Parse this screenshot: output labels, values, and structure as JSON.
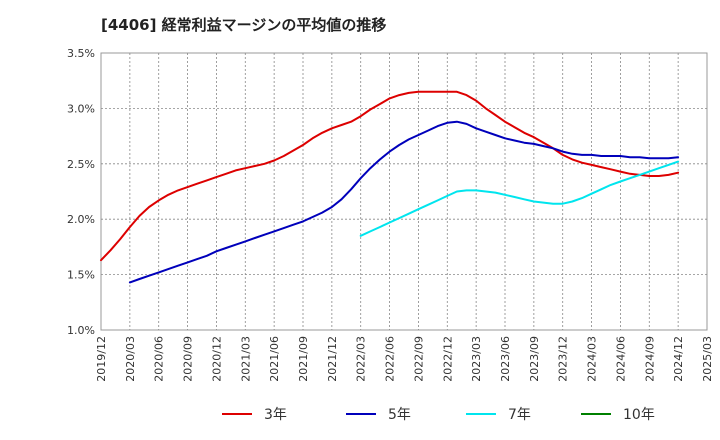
{
  "chart_data": {
    "type": "line",
    "title": "[4406]  経常利益マージンの平均値の推移",
    "y_ticks": [
      "1.0%",
      "1.5%",
      "2.0%",
      "2.5%",
      "3.0%",
      "3.5%"
    ],
    "ylim": [
      1.0,
      3.5
    ],
    "x_ticks": [
      "2019/12",
      "2020/03",
      "2020/06",
      "2020/09",
      "2020/12",
      "2021/03",
      "2021/06",
      "2021/09",
      "2021/12",
      "2022/03",
      "2022/06",
      "2022/09",
      "2022/12",
      "2023/03",
      "2023/06",
      "2023/09",
      "2023/12",
      "2024/03",
      "2024/06",
      "2024/09",
      "2024/12",
      "2025/03"
    ],
    "grid": true,
    "legend_position": "bottom",
    "series": [
      {
        "name": "3年",
        "color": "#dd0000",
        "x": [
          "2019/12",
          "2020/01",
          "2020/02",
          "2020/03",
          "2020/04",
          "2020/05",
          "2020/06",
          "2020/07",
          "2020/08",
          "2020/09",
          "2020/10",
          "2020/11",
          "2020/12",
          "2021/01",
          "2021/02",
          "2021/03",
          "2021/04",
          "2021/05",
          "2021/06",
          "2021/07",
          "2021/08",
          "2021/09",
          "2021/10",
          "2021/11",
          "2021/12",
          "2022/01",
          "2022/02",
          "2022/03",
          "2022/04",
          "2022/05",
          "2022/06",
          "2022/07",
          "2022/08",
          "2022/09",
          "2022/10",
          "2022/11",
          "2022/12",
          "2023/01",
          "2023/02",
          "2023/03",
          "2023/04",
          "2023/05",
          "2023/06",
          "2023/07",
          "2023/08",
          "2023/09",
          "2023/10",
          "2023/11",
          "2023/12",
          "2024/01",
          "2024/02",
          "2024/03",
          "2024/04",
          "2024/05",
          "2024/06",
          "2024/07",
          "2024/08",
          "2024/09",
          "2024/10",
          "2024/11",
          "2024/12"
        ],
        "values": [
          1.63,
          1.72,
          1.82,
          1.93,
          2.03,
          2.11,
          2.17,
          2.22,
          2.26,
          2.29,
          2.32,
          2.35,
          2.38,
          2.41,
          2.44,
          2.46,
          2.48,
          2.5,
          2.53,
          2.57,
          2.62,
          2.67,
          2.73,
          2.78,
          2.82,
          2.85,
          2.88,
          2.93,
          2.99,
          3.04,
          3.09,
          3.12,
          3.14,
          3.15,
          3.15,
          3.15,
          3.15,
          3.15,
          3.12,
          3.07,
          3.0,
          2.94,
          2.88,
          2.83,
          2.78,
          2.74,
          2.69,
          2.64,
          2.58,
          2.54,
          2.51,
          2.49,
          2.47,
          2.45,
          2.43,
          2.41,
          2.4,
          2.39,
          2.39,
          2.4,
          2.42
        ]
      },
      {
        "name": "5年",
        "color": "#0000bb",
        "x": [
          "2020/03",
          "2020/04",
          "2020/05",
          "2020/06",
          "2020/07",
          "2020/08",
          "2020/09",
          "2020/10",
          "2020/11",
          "2020/12",
          "2021/01",
          "2021/02",
          "2021/03",
          "2021/04",
          "2021/05",
          "2021/06",
          "2021/07",
          "2021/08",
          "2021/09",
          "2021/10",
          "2021/11",
          "2021/12",
          "2022/01",
          "2022/02",
          "2022/03",
          "2022/04",
          "2022/05",
          "2022/06",
          "2022/07",
          "2022/08",
          "2022/09",
          "2022/10",
          "2022/11",
          "2022/12",
          "2023/01",
          "2023/02",
          "2023/03",
          "2023/04",
          "2023/05",
          "2023/06",
          "2023/07",
          "2023/08",
          "2023/09",
          "2023/10",
          "2023/11",
          "2023/12",
          "2024/01",
          "2024/02",
          "2024/03",
          "2024/04",
          "2024/05",
          "2024/06",
          "2024/07",
          "2024/08",
          "2024/09",
          "2024/10",
          "2024/11",
          "2024/12"
        ],
        "values": [
          1.43,
          1.46,
          1.49,
          1.52,
          1.55,
          1.58,
          1.61,
          1.64,
          1.67,
          1.71,
          1.74,
          1.77,
          1.8,
          1.83,
          1.86,
          1.89,
          1.92,
          1.95,
          1.98,
          2.02,
          2.06,
          2.11,
          2.18,
          2.27,
          2.37,
          2.46,
          2.54,
          2.61,
          2.67,
          2.72,
          2.76,
          2.8,
          2.84,
          2.87,
          2.88,
          2.86,
          2.82,
          2.79,
          2.76,
          2.73,
          2.71,
          2.69,
          2.68,
          2.66,
          2.64,
          2.61,
          2.59,
          2.58,
          2.58,
          2.57,
          2.57,
          2.57,
          2.56,
          2.56,
          2.55,
          2.55,
          2.55,
          2.56
        ]
      },
      {
        "name": "7年",
        "color": "#00e5ee",
        "x": [
          "2022/03",
          "2022/04",
          "2022/05",
          "2022/06",
          "2022/07",
          "2022/08",
          "2022/09",
          "2022/10",
          "2022/11",
          "2022/12",
          "2023/01",
          "2023/02",
          "2023/03",
          "2023/04",
          "2023/05",
          "2023/06",
          "2023/07",
          "2023/08",
          "2023/09",
          "2023/10",
          "2023/11",
          "2023/12",
          "2024/01",
          "2024/02",
          "2024/03",
          "2024/04",
          "2024/05",
          "2024/06",
          "2024/07",
          "2024/08",
          "2024/09",
          "2024/10",
          "2024/11",
          "2024/12"
        ],
        "values": [
          1.85,
          1.89,
          1.93,
          1.97,
          2.01,
          2.05,
          2.09,
          2.13,
          2.17,
          2.21,
          2.25,
          2.26,
          2.26,
          2.25,
          2.24,
          2.22,
          2.2,
          2.18,
          2.16,
          2.15,
          2.14,
          2.14,
          2.16,
          2.19,
          2.23,
          2.27,
          2.31,
          2.34,
          2.37,
          2.4,
          2.43,
          2.46,
          2.49,
          2.52
        ]
      },
      {
        "name": "10年",
        "color": "#008000",
        "x": [],
        "values": []
      }
    ]
  }
}
